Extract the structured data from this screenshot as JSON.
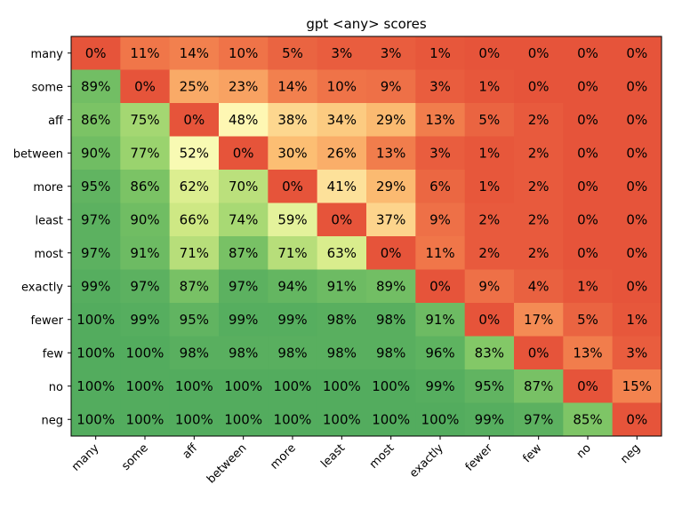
{
  "chart_data": {
    "type": "heatmap",
    "title": "gpt <any> scores",
    "xlabel": "",
    "ylabel": "",
    "x_categories": [
      "many",
      "some",
      "aff",
      "between",
      "more",
      "least",
      "most",
      "exactly",
      "fewer",
      "few",
      "no",
      "neg"
    ],
    "y_categories": [
      "many",
      "some",
      "aff",
      "between",
      "more",
      "least",
      "most",
      "exactly",
      "fewer",
      "few",
      "no",
      "neg"
    ],
    "value_format": "percent",
    "values": [
      [
        0,
        11,
        14,
        10,
        5,
        3,
        3,
        1,
        0,
        0,
        0,
        0
      ],
      [
        89,
        0,
        25,
        23,
        14,
        10,
        9,
        3,
        1,
        0,
        0,
        0
      ],
      [
        86,
        75,
        0,
        48,
        38,
        34,
        29,
        13,
        5,
        2,
        0,
        0
      ],
      [
        90,
        77,
        52,
        0,
        30,
        26,
        13,
        3,
        1,
        2,
        0,
        0
      ],
      [
        95,
        86,
        62,
        70,
        0,
        41,
        29,
        6,
        1,
        2,
        0,
        0
      ],
      [
        97,
        90,
        66,
        74,
        59,
        0,
        37,
        9,
        2,
        2,
        0,
        0
      ],
      [
        97,
        91,
        71,
        87,
        71,
        63,
        0,
        11,
        2,
        2,
        0,
        0
      ],
      [
        99,
        97,
        87,
        97,
        94,
        91,
        89,
        0,
        9,
        4,
        1,
        0
      ],
      [
        100,
        99,
        95,
        99,
        99,
        98,
        98,
        91,
        0,
        17,
        5,
        1
      ],
      [
        100,
        100,
        98,
        98,
        98,
        98,
        98,
        96,
        83,
        0,
        13,
        3
      ],
      [
        100,
        100,
        100,
        100,
        100,
        100,
        100,
        99,
        95,
        87,
        0,
        15
      ],
      [
        100,
        100,
        100,
        100,
        100,
        100,
        100,
        100,
        99,
        97,
        85,
        0
      ]
    ],
    "colormap": "RdYlGn",
    "vmin": 0,
    "vmax": 100,
    "grid": false,
    "legend": "none"
  }
}
